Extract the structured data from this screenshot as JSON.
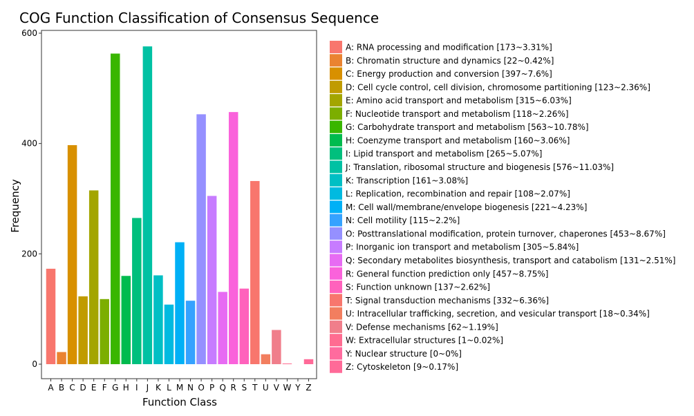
{
  "chart_data": {
    "type": "bar",
    "title": "COG Function Classification of Consensus Sequence",
    "xlabel": "Function Class",
    "ylabel": "Frequency",
    "ylim": [
      0,
      600
    ],
    "yticks": [
      0,
      200,
      400,
      600
    ],
    "grid": false,
    "legend_position": "right",
    "categories": [
      "A",
      "B",
      "C",
      "D",
      "E",
      "F",
      "G",
      "H",
      "I",
      "J",
      "K",
      "L",
      "M",
      "N",
      "O",
      "P",
      "Q",
      "R",
      "S",
      "T",
      "U",
      "V",
      "W",
      "Y",
      "Z"
    ],
    "values": [
      173,
      22,
      397,
      123,
      315,
      118,
      563,
      160,
      265,
      576,
      161,
      108,
      221,
      115,
      453,
      305,
      131,
      457,
      137,
      332,
      18,
      62,
      1,
      0,
      9
    ],
    "colors": [
      "#F8766D",
      "#EA8331",
      "#D89000",
      "#C09B00",
      "#A3A500",
      "#7CAE00",
      "#39B600",
      "#00BB4E",
      "#00BF7D",
      "#00C1A3",
      "#00BFC4",
      "#00BAE0",
      "#00B0F6",
      "#35A2FF",
      "#9590FF",
      "#C77CFF",
      "#E76BF3",
      "#FA62DB",
      "#FF62BC",
      "#F8766D",
      "#F27E5F",
      "#F07E8B",
      "#FF6C91",
      "#FF6B9E",
      "#FF6A98"
    ],
    "legend": [
      "A: RNA processing and modification [173~3.31%]",
      "B: Chromatin structure and dynamics [22~0.42%]",
      "C: Energy production and conversion [397~7.6%]",
      "D: Cell cycle control, cell division, chromosome partitioning [123~2.36%]",
      "E: Amino acid transport and metabolism [315~6.03%]",
      "F: Nucleotide transport and metabolism [118~2.26%]",
      "G: Carbohydrate transport and metabolism [563~10.78%]",
      "H: Coenzyme transport and metabolism [160~3.06%]",
      "I: Lipid transport and metabolism [265~5.07%]",
      "J: Translation, ribosomal structure and biogenesis [576~11.03%]",
      "K: Transcription [161~3.08%]",
      "L: Replication, recombination and repair [108~2.07%]",
      "M: Cell wall/membrane/envelope biogenesis [221~4.23%]",
      "N: Cell motility [115~2.2%]",
      "O: Posttranslational modification, protein turnover, chaperones [453~8.67%]",
      "P: Inorganic ion transport and metabolism [305~5.84%]",
      "Q: Secondary metabolites biosynthesis, transport and catabolism [131~2.51%]",
      "R: General function prediction only [457~8.75%]",
      "S: Function unknown [137~2.62%]",
      "T: Signal transduction mechanisms [332~6.36%]",
      "U: Intracellular trafficking, secretion, and vesicular transport [18~0.34%]",
      "V: Defense mechanisms [62~1.19%]",
      "W: Extracellular structures [1~0.02%]",
      "Y: Nuclear structure [0~0%]",
      "Z: Cytoskeleton [9~0.17%]"
    ]
  }
}
